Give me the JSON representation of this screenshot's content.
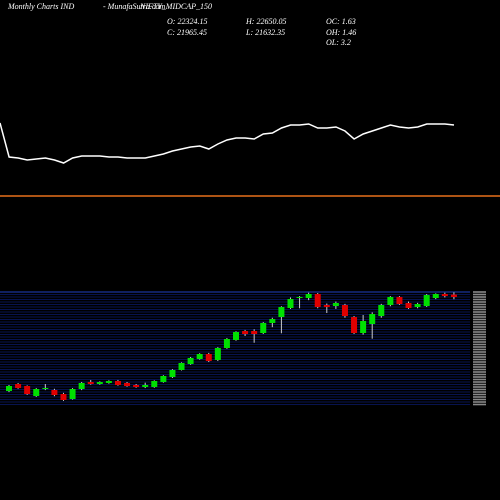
{
  "header": {
    "title": "Monthly Charts IND",
    "source": "- MunafaSutra.com",
    "symbol": "NIFTY_MIDCAP_150",
    "stats": [
      "O: 22324.15",
      "H: 22650.05",
      "OC: 1.63",
      "C: 21965.45",
      "L: 21632.35",
      "OH: 1.46",
      "OL: 3.2"
    ]
  },
  "chart_data": [
    {
      "type": "line",
      "color": "#ffffff",
      "reference": 28.3,
      "reference_color": "#e8701a",
      "ylim": [
        0,
        100
      ],
      "values": [
        89.2,
        60.8,
        60,
        58.3,
        59.2,
        60,
        58.3,
        55.8,
        60,
        61.7,
        61.7,
        61.7,
        60.8,
        60.8,
        60,
        60,
        60,
        61.7,
        63.3,
        65.8,
        67.5,
        69.2,
        70,
        67.5,
        71.7,
        75,
        76.7,
        76.7,
        75.8,
        80,
        80.8,
        85,
        87.5,
        87.5,
        88.3,
        85,
        85,
        85.8,
        82.5,
        75.8,
        80,
        82.5,
        85,
        87.5,
        85.8,
        85,
        85.8,
        88.3,
        88.3,
        88.3,
        87.5
      ]
    },
    {
      "type": "candlestick",
      "up_color": "#00e000",
      "down_color": "#e00000",
      "grid": true,
      "ylim": [
        6000,
        23000
      ],
      "open": [
        8069,
        9104,
        8808,
        7330,
        8365,
        8217,
        7626,
        6887,
        8365,
        9399,
        9104,
        9252,
        9547,
        9252,
        8956,
        8660,
        8660,
        9399,
        10138,
        11173,
        12060,
        12799,
        13538,
        12651,
        14425,
        15607,
        16937,
        16937,
        16642,
        18120,
        19006,
        20337,
        21815,
        21815,
        22406,
        20780,
        20632,
        20780,
        19006,
        16642,
        17972,
        19154,
        20780,
        21963,
        21076,
        20484,
        20632,
        21815,
        22406,
        22324.15
      ],
      "high": [
        8956,
        9250,
        8900,
        8500,
        9100,
        8400,
        7800,
        8500,
        9400,
        9700,
        9500,
        9650,
        9700,
        9400,
        9100,
        9300,
        9650,
        10400,
        11300,
        12300,
        13100,
        13650,
        13700,
        14550,
        15900,
        16900,
        17100,
        17200,
        18250,
        18900,
        20600,
        21900,
        22100,
        22600,
        22550,
        21000,
        21300,
        20950,
        19150,
        19300,
        19700,
        20950,
        22100,
        22100,
        21300,
        21100,
        22400,
        22500,
        22600,
        22650.05
      ],
      "low": [
        7900,
        8400,
        7500,
        7200,
        8200,
        7300,
        6600,
        6800,
        8200,
        9000,
        9000,
        9150,
        8850,
        8700,
        8550,
        8500,
        8550,
        9300,
        10000,
        11100,
        11950,
        12700,
        12350,
        12500,
        14300,
        15500,
        16200,
        15200,
        16500,
        17500,
        16600,
        20200,
        20300,
        21500,
        20300,
        19600,
        20200,
        18900,
        16500,
        16400,
        15800,
        18900,
        20600,
        20800,
        20200,
        20300,
        20500,
        21650,
        21900,
        21632.35
      ],
      "close": [
        8808,
        8513,
        7626,
        8365,
        8513,
        7478,
        6739,
        8365,
        9252,
        9104,
        9399,
        9547,
        8956,
        8808,
        8660,
        8956,
        9547,
        10286,
        11173,
        12208,
        12947,
        13538,
        12503,
        14425,
        15755,
        16789,
        16494,
        16494,
        18120,
        18711,
        20484,
        21667,
        21963,
        22406,
        20484,
        20484,
        21076,
        19154,
        16642,
        18415,
        19450,
        20780,
        21963,
        20928,
        20337,
        20928,
        22258,
        22406,
        22110,
        21965.45
      ]
    }
  ]
}
